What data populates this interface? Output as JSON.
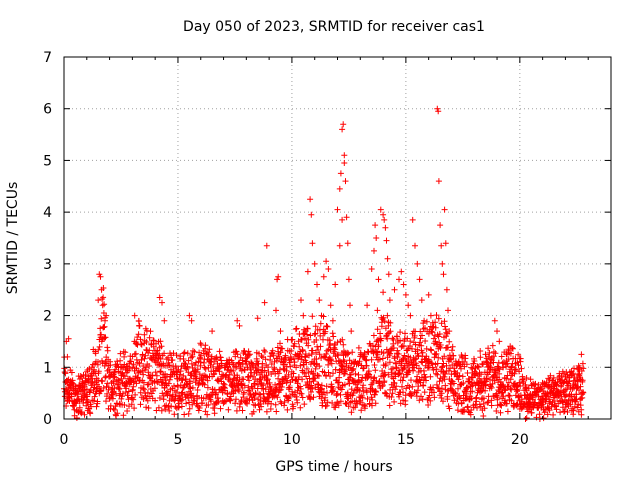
{
  "chart_data": {
    "type": "scatter",
    "title": "Day 050 of 2023, SRMTID for receiver cas1",
    "xlabel": "GPS time / hours",
    "ylabel": "SRMTID / TECUs",
    "xlim": [
      0,
      24
    ],
    "ylim": [
      0,
      7
    ],
    "xticks": [
      0,
      5,
      10,
      15,
      20
    ],
    "yticks": [
      0,
      1,
      2,
      3,
      4,
      5,
      6,
      7
    ],
    "grid": true,
    "marker": "+",
    "series": [
      {
        "name": "cas1",
        "color": "#ff0000",
        "envelope": [
          {
            "x": 0.0,
            "y": 0.9
          },
          {
            "x": 0.5,
            "y": 0.5
          },
          {
            "x": 1.0,
            "y": 0.7
          },
          {
            "x": 1.5,
            "y": 1.0
          },
          {
            "x": 1.7,
            "y": 1.8
          },
          {
            "x": 2.0,
            "y": 0.8
          },
          {
            "x": 3.0,
            "y": 0.9
          },
          {
            "x": 3.3,
            "y": 1.4
          },
          {
            "x": 4.0,
            "y": 1.1
          },
          {
            "x": 5.0,
            "y": 0.8
          },
          {
            "x": 6.0,
            "y": 1.0
          },
          {
            "x": 7.0,
            "y": 0.8
          },
          {
            "x": 8.0,
            "y": 0.9
          },
          {
            "x": 9.0,
            "y": 0.9
          },
          {
            "x": 10.0,
            "y": 1.1
          },
          {
            "x": 11.0,
            "y": 1.4
          },
          {
            "x": 12.0,
            "y": 1.2
          },
          {
            "x": 12.5,
            "y": 0.9
          },
          {
            "x": 13.0,
            "y": 0.9
          },
          {
            "x": 14.0,
            "y": 1.4
          },
          {
            "x": 15.0,
            "y": 1.2
          },
          {
            "x": 16.0,
            "y": 1.3
          },
          {
            "x": 16.5,
            "y": 1.5
          },
          {
            "x": 17.0,
            "y": 0.9
          },
          {
            "x": 18.0,
            "y": 0.8
          },
          {
            "x": 19.0,
            "y": 1.0
          },
          {
            "x": 20.0,
            "y": 0.9
          },
          {
            "x": 20.3,
            "y": 0.45
          },
          {
            "x": 21.0,
            "y": 0.5
          },
          {
            "x": 22.0,
            "y": 0.6
          },
          {
            "x": 22.8,
            "y": 0.7
          }
        ],
        "points": [
          {
            "x": 0.1,
            "y": 1.5
          },
          {
            "x": 0.2,
            "y": 1.55
          },
          {
            "x": 0.15,
            "y": 1.2
          },
          {
            "x": 1.55,
            "y": 2.8
          },
          {
            "x": 1.6,
            "y": 2.75
          },
          {
            "x": 1.65,
            "y": 2.5
          },
          {
            "x": 1.7,
            "y": 2.2
          },
          {
            "x": 1.75,
            "y": 2.05
          },
          {
            "x": 1.8,
            "y": 1.9
          },
          {
            "x": 1.85,
            "y": 2.0
          },
          {
            "x": 1.5,
            "y": 2.3
          },
          {
            "x": 3.1,
            "y": 2.0
          },
          {
            "x": 3.3,
            "y": 1.8
          },
          {
            "x": 4.2,
            "y": 2.35
          },
          {
            "x": 4.3,
            "y": 2.25
          },
          {
            "x": 4.4,
            "y": 1.9
          },
          {
            "x": 5.5,
            "y": 2.0
          },
          {
            "x": 5.6,
            "y": 1.9
          },
          {
            "x": 6.5,
            "y": 1.7
          },
          {
            "x": 7.6,
            "y": 1.9
          },
          {
            "x": 7.7,
            "y": 1.8
          },
          {
            "x": 8.5,
            "y": 1.95
          },
          {
            "x": 8.9,
            "y": 3.35
          },
          {
            "x": 8.8,
            "y": 2.25
          },
          {
            "x": 9.4,
            "y": 2.75
          },
          {
            "x": 9.35,
            "y": 2.7
          },
          {
            "x": 9.3,
            "y": 2.1
          },
          {
            "x": 9.5,
            "y": 1.7
          },
          {
            "x": 10.4,
            "y": 2.3
          },
          {
            "x": 10.5,
            "y": 2.0
          },
          {
            "x": 10.7,
            "y": 2.85
          },
          {
            "x": 10.8,
            "y": 4.25
          },
          {
            "x": 10.85,
            "y": 3.95
          },
          {
            "x": 10.9,
            "y": 3.4
          },
          {
            "x": 11.0,
            "y": 3.0
          },
          {
            "x": 11.1,
            "y": 2.6
          },
          {
            "x": 11.2,
            "y": 2.3
          },
          {
            "x": 11.3,
            "y": 2.0
          },
          {
            "x": 11.4,
            "y": 2.75
          },
          {
            "x": 11.5,
            "y": 3.05
          },
          {
            "x": 11.6,
            "y": 2.9
          },
          {
            "x": 11.7,
            "y": 2.2
          },
          {
            "x": 11.8,
            "y": 1.9
          },
          {
            "x": 11.9,
            "y": 2.6
          },
          {
            "x": 12.0,
            "y": 4.05
          },
          {
            "x": 12.1,
            "y": 4.45
          },
          {
            "x": 12.15,
            "y": 4.75
          },
          {
            "x": 12.2,
            "y": 5.6
          },
          {
            "x": 12.25,
            "y": 5.7
          },
          {
            "x": 12.3,
            "y": 5.1
          },
          {
            "x": 12.35,
            "y": 4.6
          },
          {
            "x": 12.4,
            "y": 3.9
          },
          {
            "x": 12.45,
            "y": 3.4
          },
          {
            "x": 12.5,
            "y": 2.7
          },
          {
            "x": 12.55,
            "y": 2.2
          },
          {
            "x": 12.6,
            "y": 1.7
          },
          {
            "x": 12.2,
            "y": 3.85
          },
          {
            "x": 12.1,
            "y": 3.35
          },
          {
            "x": 12.3,
            "y": 4.95
          },
          {
            "x": 13.3,
            "y": 2.2
          },
          {
            "x": 13.5,
            "y": 2.9
          },
          {
            "x": 13.6,
            "y": 3.25
          },
          {
            "x": 13.65,
            "y": 3.75
          },
          {
            "x": 13.7,
            "y": 3.5
          },
          {
            "x": 13.8,
            "y": 2.7
          },
          {
            "x": 13.9,
            "y": 4.05
          },
          {
            "x": 14.0,
            "y": 3.95
          },
          {
            "x": 14.05,
            "y": 3.85
          },
          {
            "x": 14.1,
            "y": 3.7
          },
          {
            "x": 14.15,
            "y": 3.45
          },
          {
            "x": 14.2,
            "y": 3.1
          },
          {
            "x": 14.25,
            "y": 2.8
          },
          {
            "x": 14.3,
            "y": 2.3
          },
          {
            "x": 14.0,
            "y": 2.45
          },
          {
            "x": 13.75,
            "y": 2.1
          },
          {
            "x": 14.5,
            "y": 2.5
          },
          {
            "x": 14.7,
            "y": 2.7
          },
          {
            "x": 14.8,
            "y": 2.85
          },
          {
            "x": 14.9,
            "y": 2.6
          },
          {
            "x": 15.0,
            "y": 2.4
          },
          {
            "x": 15.1,
            "y": 2.2
          },
          {
            "x": 15.2,
            "y": 2.0
          },
          {
            "x": 15.3,
            "y": 3.85
          },
          {
            "x": 15.4,
            "y": 3.35
          },
          {
            "x": 15.5,
            "y": 3.0
          },
          {
            "x": 15.6,
            "y": 2.7
          },
          {
            "x": 15.7,
            "y": 2.3
          },
          {
            "x": 15.8,
            "y": 1.9
          },
          {
            "x": 16.0,
            "y": 2.4
          },
          {
            "x": 16.1,
            "y": 2.0
          },
          {
            "x": 16.3,
            "y": 1.5
          },
          {
            "x": 16.38,
            "y": 6.0
          },
          {
            "x": 16.42,
            "y": 5.95
          },
          {
            "x": 16.45,
            "y": 4.6
          },
          {
            "x": 16.5,
            "y": 3.75
          },
          {
            "x": 16.55,
            "y": 3.35
          },
          {
            "x": 16.6,
            "y": 3.0
          },
          {
            "x": 16.65,
            "y": 2.8
          },
          {
            "x": 16.7,
            "y": 4.05
          },
          {
            "x": 16.75,
            "y": 3.4
          },
          {
            "x": 16.8,
            "y": 2.5
          },
          {
            "x": 16.85,
            "y": 2.1
          },
          {
            "x": 16.9,
            "y": 1.7
          },
          {
            "x": 18.9,
            "y": 1.9
          },
          {
            "x": 19.0,
            "y": 1.7
          },
          {
            "x": 19.1,
            "y": 1.5
          },
          {
            "x": 19.5,
            "y": 1.35
          },
          {
            "x": 20.25,
            "y": 0.0
          },
          {
            "x": 20.3,
            "y": 0.02
          },
          {
            "x": 22.7,
            "y": 1.25
          }
        ]
      }
    ]
  }
}
